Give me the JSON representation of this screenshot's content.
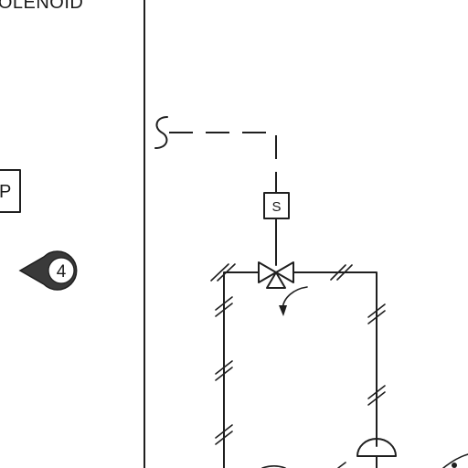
{
  "legend": {
    "solenoid_label": "SOLENOID",
    "partial_box_letter": "P"
  },
  "callout": {
    "number": "4"
  },
  "solenoid_box": {
    "letter": "S"
  }
}
